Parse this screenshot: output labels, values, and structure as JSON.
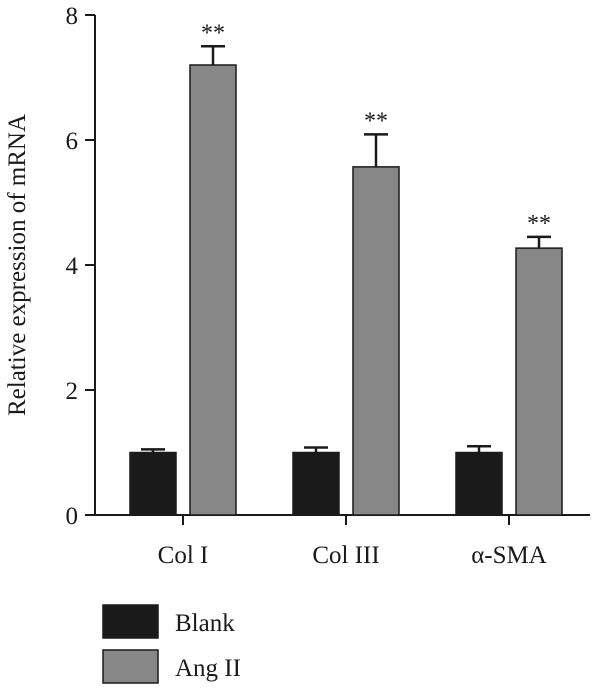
{
  "chart_data": {
    "type": "bar",
    "ylabel": "Relative expression of mRNA",
    "ylim": [
      0,
      8
    ],
    "yticks": [
      0,
      2,
      4,
      6,
      8
    ],
    "categories": [
      "Col I",
      "Col III",
      "α-SMA"
    ],
    "series": [
      {
        "name": "Blank",
        "color": "#1a1a1a",
        "values": [
          1.0,
          1.0,
          1.0
        ],
        "errors": [
          0.05,
          0.08,
          0.1
        ]
      },
      {
        "name": "Ang II",
        "color": "#878787",
        "values": [
          7.2,
          5.57,
          4.27
        ],
        "errors": [
          0.3,
          0.52,
          0.18
        ],
        "annotations": [
          "**",
          "**",
          "**"
        ]
      }
    ],
    "grid": false,
    "legend_position": "bottom-left"
  }
}
